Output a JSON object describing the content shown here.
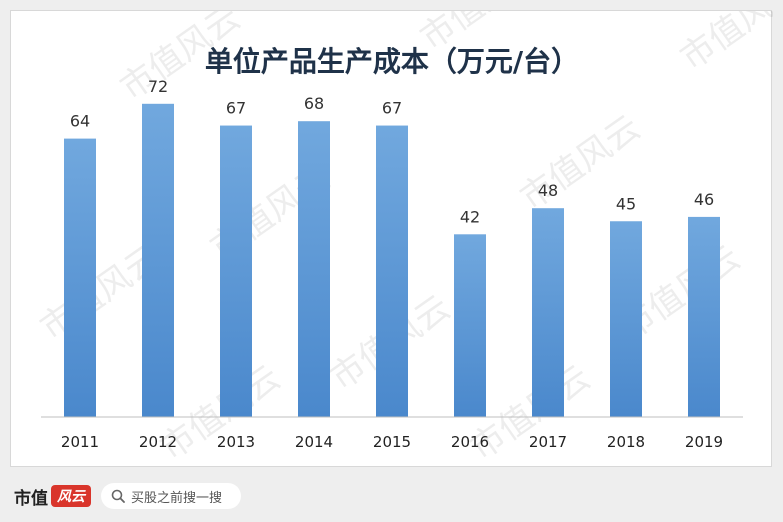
{
  "chart_data": {
    "type": "bar",
    "title": "单位产品生产成本（万元/台）",
    "categories": [
      "2011",
      "2012",
      "2013",
      "2014",
      "2015",
      "2016",
      "2017",
      "2018",
      "2019"
    ],
    "values": [
      64,
      72,
      67,
      68,
      67,
      42,
      48,
      45,
      46
    ],
    "ylim": [
      0,
      80
    ],
    "grid": false,
    "legend": "none",
    "bar_color": "#5b9bd5"
  },
  "watermark": {
    "text": "市值风云"
  },
  "footer": {
    "brand_name": "市值",
    "brand_mark": "风云",
    "search_placeholder": "买股之前搜一搜"
  }
}
